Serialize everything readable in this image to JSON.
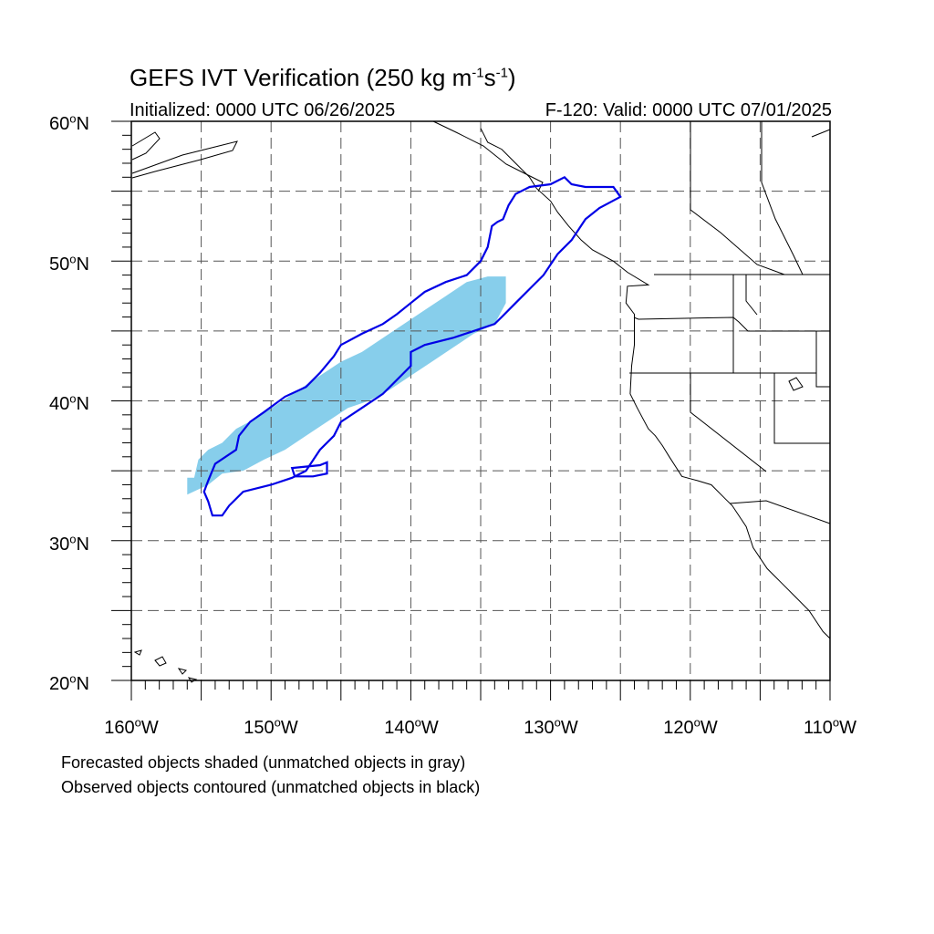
{
  "header": {
    "title_main": "GEFS IVT Verification (250 kg m",
    "title_exp1": "-1",
    "title_mid": "s",
    "title_exp2": "-1",
    "title_end": ")",
    "initialized": "Initialized: 0000 UTC 06/26/2025",
    "valid": "F-120: Valid: 0000 UTC 07/01/2025"
  },
  "axes": {
    "lat_labels": [
      "60oN",
      "50oN",
      "40oN",
      "30oN",
      "20oN"
    ],
    "lon_labels": [
      "160oW",
      "150oW",
      "140oW",
      "130oW",
      "120oW",
      "110oW"
    ],
    "lat_range": [
      20,
      60
    ],
    "lon_range": [
      -160,
      -110
    ],
    "grid": "dashed every 5 degrees"
  },
  "legend": {
    "line1": "Forecasted objects shaded (unmatched objects in gray)",
    "line2": "Observed objects contoured (unmatched objects in black)"
  },
  "colors": {
    "forecast_fill": "#87ceeb",
    "observed_contour": "#0000e6",
    "coastline": "#000000",
    "grid": "#555555"
  },
  "forecast_object_vertices_lonlat": [
    [
      -155.5,
      34.5
    ],
    [
      -155.2,
      35.8
    ],
    [
      -154.5,
      36.5
    ],
    [
      -153.5,
      37.0
    ],
    [
      -152.5,
      38.0
    ],
    [
      -151.0,
      38.8
    ],
    [
      -149.5,
      39.8
    ],
    [
      -148.0,
      40.8
    ],
    [
      -146.5,
      41.8
    ],
    [
      -145.0,
      42.8
    ],
    [
      -143.5,
      43.5
    ],
    [
      -142.0,
      44.5
    ],
    [
      -140.5,
      45.5
    ],
    [
      -139.0,
      46.5
    ],
    [
      -137.5,
      47.5
    ],
    [
      -136.0,
      48.5
    ],
    [
      -134.5,
      48.9
    ],
    [
      -133.2,
      48.9
    ],
    [
      -133.2,
      47.0
    ],
    [
      -134.0,
      45.5
    ],
    [
      -135.5,
      44.8
    ],
    [
      -137.0,
      43.8
    ],
    [
      -138.5,
      42.8
    ],
    [
      -140.0,
      41.8
    ],
    [
      -141.5,
      40.8
    ],
    [
      -143.0,
      40.0
    ],
    [
      -144.5,
      39.5
    ],
    [
      -146.0,
      38.5
    ],
    [
      -147.5,
      37.5
    ],
    [
      -149.0,
      36.5
    ],
    [
      -150.5,
      35.8
    ],
    [
      -152.0,
      35.0
    ],
    [
      -153.5,
      34.8
    ],
    [
      -154.5,
      34.0
    ],
    [
      -156.0,
      33.3
    ],
    [
      -156.0,
      34.5
    ]
  ],
  "observed_object_vertices_lonlat": [
    [
      -154.5,
      34.3
    ],
    [
      -154.0,
      35.5
    ],
    [
      -152.5,
      36.5
    ],
    [
      -152.3,
      37.5
    ],
    [
      -151.5,
      38.5
    ],
    [
      -150.5,
      39.2
    ],
    [
      -149.0,
      40.3
    ],
    [
      -147.5,
      41.0
    ],
    [
      -146.5,
      42.0
    ],
    [
      -145.5,
      43.2
    ],
    [
      -145.0,
      44.0
    ],
    [
      -143.5,
      44.8
    ],
    [
      -142.0,
      45.5
    ],
    [
      -141.0,
      46.2
    ],
    [
      -140.0,
      47.0
    ],
    [
      -139.0,
      47.8
    ],
    [
      -137.5,
      48.5
    ],
    [
      -136.0,
      49.0
    ],
    [
      -135.0,
      50.0
    ],
    [
      -134.5,
      51.0
    ],
    [
      -134.2,
      52.5
    ],
    [
      -133.8,
      52.8
    ],
    [
      -133.4,
      53.0
    ],
    [
      -133.0,
      54.0
    ],
    [
      -132.5,
      54.8
    ],
    [
      -131.5,
      55.3
    ],
    [
      -130.0,
      55.5
    ],
    [
      -129.0,
      56.0
    ],
    [
      -128.5,
      55.5
    ],
    [
      -127.5,
      55.3
    ],
    [
      -125.5,
      55.3
    ],
    [
      -125.0,
      54.6
    ],
    [
      -126.5,
      53.8
    ],
    [
      -127.5,
      53.0
    ],
    [
      -128.5,
      51.5
    ],
    [
      -129.5,
      50.5
    ],
    [
      -130.5,
      49.0
    ],
    [
      -131.5,
      48.0
    ],
    [
      -132.5,
      47.0
    ],
    [
      -133.5,
      46.0
    ],
    [
      -134.0,
      45.5
    ],
    [
      -135.5,
      45.0
    ],
    [
      -137.0,
      44.5
    ],
    [
      -139.0,
      44.0
    ],
    [
      -140.0,
      43.5
    ],
    [
      -140.0,
      42.5
    ],
    [
      -141.0,
      41.5
    ],
    [
      -142.0,
      40.5
    ],
    [
      -143.5,
      39.5
    ],
    [
      -145.0,
      38.5
    ],
    [
      -145.5,
      37.5
    ],
    [
      -146.5,
      36.5
    ],
    [
      -147.5,
      35.0
    ],
    [
      -148.5,
      34.5
    ],
    [
      -150.0,
      34.0
    ],
    [
      -152.0,
      33.5
    ],
    [
      -153.0,
      32.5
    ],
    [
      -153.5,
      31.8
    ],
    [
      -154.2,
      31.8
    ],
    [
      -154.5,
      32.8
    ],
    [
      -154.8,
      33.5
    ]
  ],
  "observed_small_object_vertices_lonlat": [
    [
      -148.5,
      35.2
    ],
    [
      -146.5,
      35.4
    ],
    [
      -146.0,
      35.6
    ],
    [
      -146.0,
      34.8
    ],
    [
      -147.0,
      34.6
    ],
    [
      -148.3,
      34.6
    ]
  ],
  "coastline_vertices_lonlat": [
    [
      -135.0,
      59.5
    ],
    [
      -134.5,
      58.5
    ],
    [
      -133.5,
      58.0
    ],
    [
      -132.5,
      57.0
    ],
    [
      -131.5,
      56.0
    ],
    [
      -131.0,
      55.2
    ],
    [
      -130.0,
      54.3
    ],
    [
      -129.5,
      53.5
    ],
    [
      -128.7,
      52.5
    ],
    [
      -127.8,
      51.5
    ],
    [
      -127.0,
      50.8
    ],
    [
      -125.5,
      50.0
    ],
    [
      -124.5,
      49.2
    ],
    [
      -123.0,
      48.3
    ],
    [
      -124.5,
      48.2
    ],
    [
      -124.6,
      47.0
    ],
    [
      -124.0,
      46.2
    ],
    [
      -124.0,
      44.0
    ],
    [
      -124.2,
      42.5
    ],
    [
      -124.3,
      40.5
    ],
    [
      -123.8,
      39.5
    ],
    [
      -123.0,
      38.0
    ],
    [
      -122.5,
      37.5
    ],
    [
      -122.0,
      36.8
    ],
    [
      -121.5,
      36.0
    ],
    [
      -120.6,
      34.6
    ],
    [
      -119.5,
      34.3
    ],
    [
      -118.5,
      34.0
    ],
    [
      -117.5,
      33.0
    ],
    [
      -117.0,
      32.5
    ],
    [
      -116.0,
      31.0
    ],
    [
      -115.5,
      29.5
    ],
    [
      -114.5,
      28.0
    ],
    [
      -113.5,
      27.0
    ],
    [
      -112.5,
      26.0
    ],
    [
      -111.5,
      25.0
    ],
    [
      -110.5,
      23.5
    ],
    [
      -110.0,
      23.0
    ]
  ]
}
